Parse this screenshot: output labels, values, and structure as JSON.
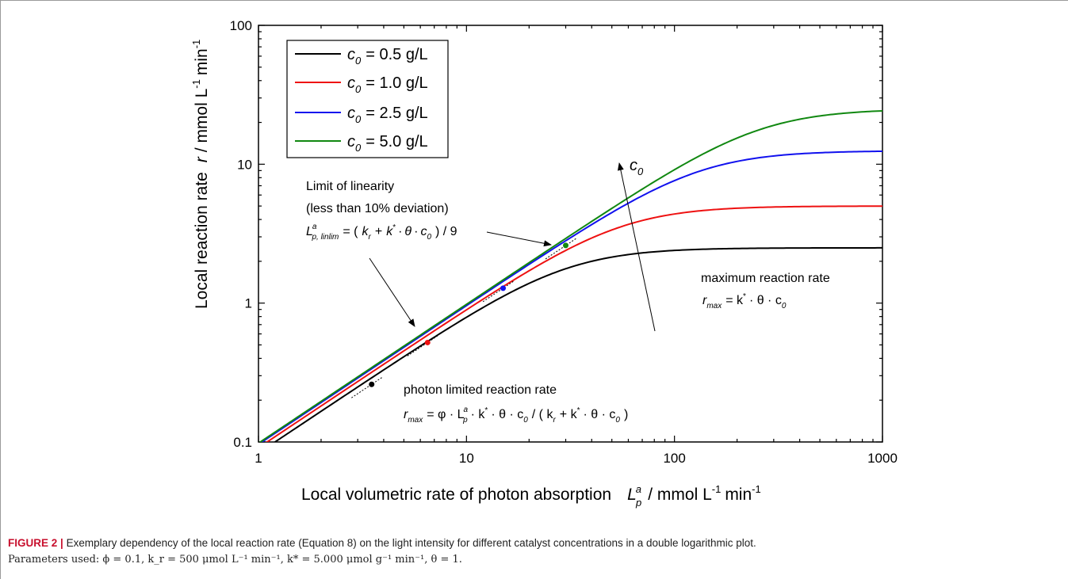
{
  "chart_data": {
    "type": "line",
    "xlabel": "Local volumetric rate of photon absorption",
    "xlabel_symbol": "L",
    "xlabel_sup": "a",
    "xlabel_sub": "p",
    "xlabel_unit_pre": "/ mmol L",
    "xlabel_unit_exp": "-1",
    "xlabel_unit_post": "min",
    "xlabel_unit_exp2": "-1",
    "ylabel": "Local reaction rate",
    "ylabel_symbol": "r",
    "ylabel_unit": "/ mmol L",
    "ylabel_unit_exp": "-1",
    "ylabel_unit_post": "min",
    "ylabel_unit_exp2": "-1",
    "xscale": "log",
    "yscale": "log",
    "xlim": [
      1,
      1000
    ],
    "ylim": [
      0.1,
      100
    ],
    "x_ticks": [
      "1",
      "10",
      "100",
      "1000"
    ],
    "y_ticks": [
      "0.1",
      "1",
      "10",
      "100"
    ],
    "legend_position": "top-left",
    "series": [
      {
        "name_sym": "c",
        "name_sub": "0",
        "name_rest": "= 0.5 g/L",
        "color": "#000000",
        "c0": 0.5,
        "point_x": 3.5,
        "point_y": 0.26
      },
      {
        "name_sym": "c",
        "name_sub": "0",
        "name_rest": "= 1.0 g/L",
        "color": "#ee1111",
        "c0": 1.0,
        "point_x": 6.5,
        "point_y": 0.52
      },
      {
        "name_sym": "c",
        "name_sub": "0",
        "name_rest": "= 2.5 g/L",
        "color": "#1111ee",
        "c0": 2.5,
        "point_x": 15.0,
        "point_y": 1.28
      },
      {
        "name_sym": "c",
        "name_sub": "0",
        "name_rest": "= 5.0 g/L",
        "color": "#118811",
        "c0": 5.0,
        "point_x": 30.0,
        "point_y": 2.6
      }
    ],
    "annotations": {
      "arrow_label_sym": "c",
      "arrow_label_sub": "0",
      "linlim_line1": "Limit of linearity",
      "linlim_line2": "(less than 10% deviation)",
      "linlim_sym": "L",
      "linlim_sup": "a",
      "linlim_sub": "p, linlim",
      "linlim_eq_a": "= (",
      "linlim_k": "k",
      "linlim_k_sub": "r",
      "linlim_plus": "+",
      "linlim_kstar": "k",
      "linlim_star": "*",
      "linlim_dot1": "·",
      "linlim_theta": "θ",
      "linlim_dot2": "·",
      "linlim_c": "c",
      "linlim_c_sub": "0",
      "linlim_tail": ") / 9",
      "max_title": "maximum reaction rate",
      "max_sym": "r",
      "max_sub": "max",
      "max_eq": "= k",
      "max_star": "*",
      "max_rest": "· θ · c",
      "max_rest_sub": "0",
      "photon_title": "photon limited reaction rate",
      "photon_sym": "r",
      "photon_sub": "max",
      "photon_eq_a": "= φ · L",
      "photon_L_sup": "a",
      "photon_L_sub": "p",
      "photon_eq_b": "· k",
      "photon_star1": "*",
      "photon_eq_c": "· θ · c",
      "photon_c_sub1": "0",
      "photon_eq_d": "/ ( k",
      "photon_kr_sub": "r",
      "photon_eq_e": "+ k",
      "photon_star2": "*",
      "photon_eq_f": "· θ · c",
      "photon_c_sub2": "0",
      "photon_eq_g": ")"
    }
  },
  "caption": {
    "label": "FIGURE 2 |",
    "text": "Exemplary dependency of the local reaction rate (Equation 8) on the light intensity for different catalyst concentrations in a double logarithmic plot.",
    "params": "Parameters used: ϕ = 0.1, k_r = 500 μmol L⁻¹ min⁻¹, k* = 5.000 μmol g⁻¹ min⁻¹, θ = 1."
  },
  "colors": {
    "black": "#000000",
    "red": "#ee1111",
    "blue": "#1111ee",
    "green": "#118811"
  }
}
